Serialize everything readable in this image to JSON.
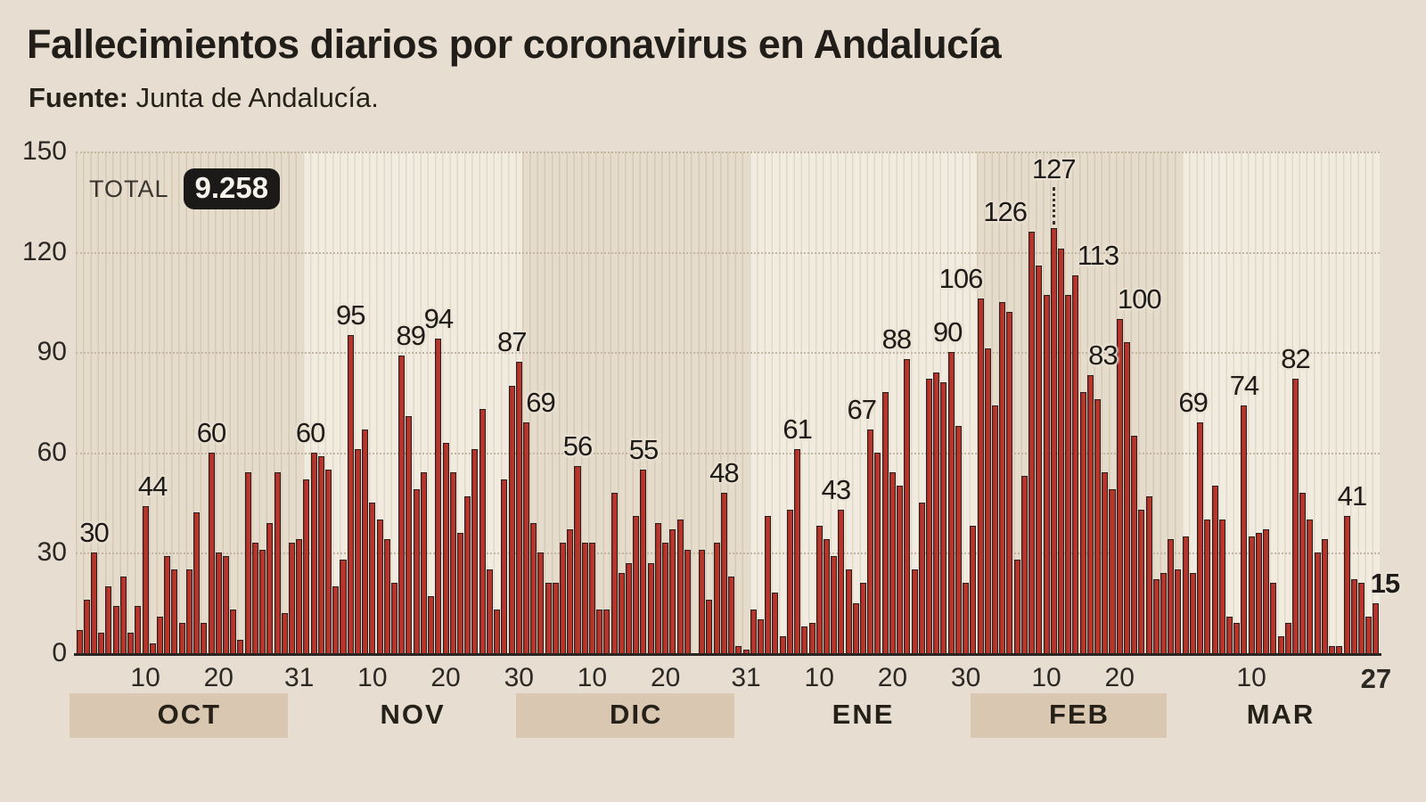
{
  "title": "Fallecimientos diarios por coronavirus en Andalucía",
  "source": {
    "label": "Fuente:",
    "text": "Junta de Andalucía."
  },
  "total": {
    "label": "TOTAL",
    "value": "9.258"
  },
  "colors": {
    "page_bg": "#e7ded1",
    "bar_fill": "#b23229",
    "bar_stroke": "#262020",
    "panel_dark": "#e6dccc",
    "panel_dark_stripe": "#d7c9b6",
    "panel_light": "#f1ebe0",
    "panel_light_stripe": "#e2d8c8",
    "gridline": "#c2b5a2",
    "baseline": "#2a2422",
    "band_bg": "#d9c7b2",
    "badge_bg": "#1c1a18",
    "badge_text": "#f6f3ed",
    "text_dark": "#211d19"
  },
  "chart_data": {
    "type": "bar",
    "title": "Fallecimientos diarios por coronavirus en Andalucía",
    "xlabel": "",
    "ylabel": "",
    "ylim": [
      0,
      150
    ],
    "y_ticks": [
      0,
      30,
      60,
      90,
      120,
      150
    ],
    "grid": "dotted horizontal at 30/60/90/120/150",
    "legend": "none",
    "months": [
      {
        "name": "OCT",
        "band": true,
        "values": [
          7,
          16,
          30,
          6,
          20,
          14,
          23,
          6,
          14,
          44,
          3,
          11,
          29,
          25,
          9,
          25,
          42,
          9,
          60,
          30,
          29,
          13,
          4,
          54,
          33,
          31,
          39,
          54,
          12,
          33,
          34
        ]
      },
      {
        "name": "NOV",
        "band": false,
        "values": [
          52,
          60,
          59,
          55,
          20,
          28,
          95,
          61,
          67,
          45,
          40,
          34,
          21,
          89,
          71,
          49,
          54,
          17,
          94,
          63,
          54,
          36,
          47,
          61,
          73,
          25,
          13,
          52,
          80,
          87
        ]
      },
      {
        "name": "DIC",
        "band": true,
        "values": [
          69,
          39,
          30,
          21,
          21,
          33,
          37,
          56,
          33,
          33,
          13,
          13,
          48,
          24,
          27,
          41,
          55,
          27,
          39,
          33,
          37,
          40,
          31,
          0,
          31,
          16,
          33,
          48,
          23,
          2,
          1
        ]
      },
      {
        "name": "ENE",
        "band": false,
        "values": [
          13,
          10,
          41,
          18,
          5,
          43,
          61,
          8,
          9,
          38,
          34,
          29,
          43,
          25,
          15,
          21,
          67,
          60,
          78,
          54,
          50,
          88,
          25,
          45,
          82,
          84,
          81,
          90,
          68,
          21,
          38
        ]
      },
      {
        "name": "FEB",
        "band": true,
        "values": [
          106,
          91,
          74,
          105,
          102,
          28,
          53,
          126,
          116,
          107,
          127,
          121,
          107,
          113,
          78,
          83,
          76,
          54,
          49,
          100,
          93,
          65,
          43,
          47,
          22,
          24,
          34,
          25
        ]
      },
      {
        "name": "MAR",
        "band": false,
        "values": [
          35,
          24,
          69,
          40,
          50,
          40,
          11,
          9,
          74,
          35,
          36,
          37,
          21,
          5,
          9,
          82,
          48,
          40,
          30,
          34,
          2,
          2,
          41,
          22,
          21,
          11,
          15
        ]
      }
    ],
    "bar_labels": [
      {
        "day_index": 2,
        "text": "30",
        "dx": 0
      },
      {
        "day_index": 9,
        "text": "44",
        "dx": 8
      },
      {
        "day_index": 18,
        "text": "60",
        "dx": 0
      },
      {
        "day_index": 32,
        "text": "60",
        "dx": -4
      },
      {
        "day_index": 37,
        "text": "95",
        "dx": 0
      },
      {
        "day_index": 44,
        "text": "89",
        "dx": 10
      },
      {
        "day_index": 49,
        "text": "94",
        "dx": 0
      },
      {
        "day_index": 60,
        "text": "87",
        "dx": -8
      },
      {
        "day_index": 61,
        "text": "69",
        "dx": 16
      },
      {
        "day_index": 68,
        "text": "56",
        "dx": 0
      },
      {
        "day_index": 77,
        "text": "55",
        "dx": 0
      },
      {
        "day_index": 88,
        "text": "48",
        "dx": 0
      },
      {
        "day_index": 98,
        "text": "61",
        "dx": 0
      },
      {
        "day_index": 104,
        "text": "43",
        "dx": -6
      },
      {
        "day_index": 108,
        "text": "67",
        "dx": -10
      },
      {
        "day_index": 113,
        "text": "88",
        "dx": -12
      },
      {
        "day_index": 119,
        "text": "90",
        "dx": -4
      },
      {
        "day_index": 123,
        "text": "106",
        "dx": -22
      },
      {
        "day_index": 130,
        "text": "126",
        "dx": -30
      },
      {
        "day_index": 133,
        "text": "127",
        "dx": 0,
        "leader": true
      },
      {
        "day_index": 136,
        "text": "113",
        "dx": 25
      },
      {
        "day_index": 138,
        "text": "83",
        "dx": 14
      },
      {
        "day_index": 142,
        "text": "100",
        "dx": 22
      },
      {
        "day_index": 153,
        "text": "69",
        "dx": -8
      },
      {
        "day_index": 159,
        "text": "74",
        "dx": 0
      },
      {
        "day_index": 166,
        "text": "82",
        "dx": 0
      },
      {
        "day_index": 173,
        "text": "41",
        "dx": 6
      },
      {
        "day_index": 177,
        "text": "15",
        "dx": 10,
        "bold": true
      }
    ],
    "x_ticks": [
      {
        "day_index": 9,
        "label": "10"
      },
      {
        "day_index": 19,
        "label": "20"
      },
      {
        "day_index": 30,
        "label": "31"
      },
      {
        "day_index": 40,
        "label": "10"
      },
      {
        "day_index": 50,
        "label": "20"
      },
      {
        "day_index": 60,
        "label": "30"
      },
      {
        "day_index": 70,
        "label": "10"
      },
      {
        "day_index": 80,
        "label": "20"
      },
      {
        "day_index": 91,
        "label": "31"
      },
      {
        "day_index": 101,
        "label": "10"
      },
      {
        "day_index": 111,
        "label": "20"
      },
      {
        "day_index": 121,
        "label": "30"
      },
      {
        "day_index": 132,
        "label": "10"
      },
      {
        "day_index": 142,
        "label": "20"
      },
      {
        "day_index": 160,
        "label": "10"
      },
      {
        "day_index": 177,
        "label": "27",
        "bold": true
      }
    ]
  }
}
